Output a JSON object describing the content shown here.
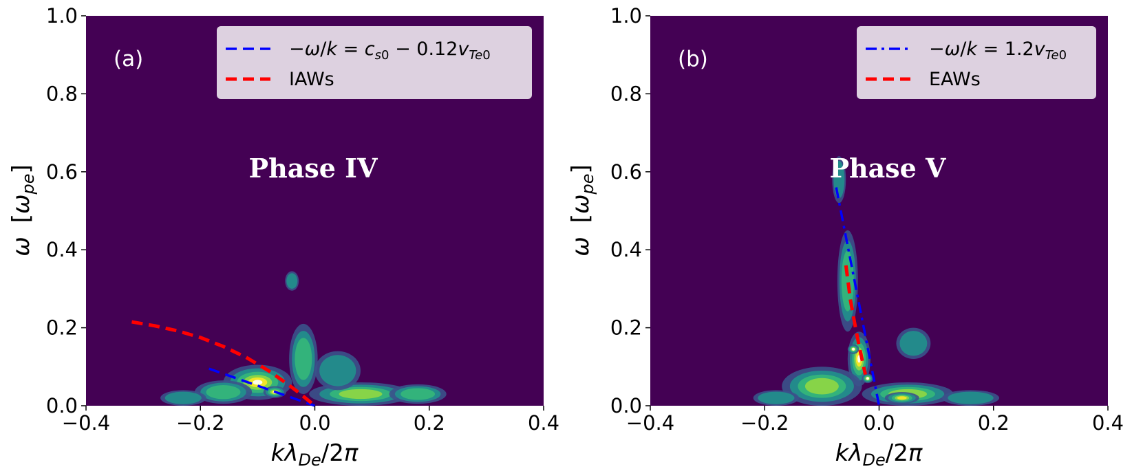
{
  "chart_data": [
    {
      "type": "contour",
      "panel": "(a)",
      "annotation": "Phase IV",
      "xlabel": "kλDe/2π",
      "ylabel": "ω   [ωpe]",
      "xlim": [
        -0.4,
        0.4
      ],
      "ylim": [
        0.0,
        1.0
      ],
      "xticks": [
        "−0.4",
        "−0.2",
        "0.0",
        "0.2",
        "0.4"
      ],
      "yticks": [
        "0.0",
        "0.2",
        "0.4",
        "0.6",
        "0.8",
        "1.0"
      ],
      "background_color": "#440154",
      "colormap": "viridis",
      "legend": {
        "location": "top-right",
        "entries": [
          {
            "label": "−ω/k = cs0 − 0.12vTe0",
            "color": "#0000ff",
            "style": "dashed"
          },
          {
            "label": "IAWs",
            "color": "#ff0000",
            "style": "dashed"
          }
        ]
      },
      "series": [
        {
          "name": "−ω/k = cs0 − 0.12vTe0",
          "color": "#0000ff",
          "style": "dashed",
          "x": [
            -0.185,
            0.0
          ],
          "y": [
            0.095,
            0.0
          ]
        },
        {
          "name": "IAWs",
          "color": "#ff0000",
          "style": "dashed",
          "x": [
            -0.32,
            -0.28,
            -0.24,
            -0.2,
            -0.16,
            -0.12,
            -0.08,
            -0.05,
            -0.03,
            0.0
          ],
          "y": [
            0.215,
            0.205,
            0.192,
            0.175,
            0.152,
            0.124,
            0.089,
            0.058,
            0.036,
            0.0
          ]
        }
      ],
      "intensity_blobs": [
        {
          "x": -0.1,
          "y": 0.06,
          "sx": 0.06,
          "sy": 0.045,
          "a": 0.85
        },
        {
          "x": -0.07,
          "y": 0.035,
          "sx": 0.02,
          "sy": 0.015,
          "a": 1.0
        },
        {
          "x": -0.16,
          "y": 0.035,
          "sx": 0.05,
          "sy": 0.03,
          "a": 0.5
        },
        {
          "x": -0.02,
          "y": 0.12,
          "sx": 0.025,
          "sy": 0.09,
          "a": 0.45
        },
        {
          "x": -0.04,
          "y": 0.32,
          "sx": 0.012,
          "sy": 0.025,
          "a": 0.25
        },
        {
          "x": 0.08,
          "y": 0.03,
          "sx": 0.09,
          "sy": 0.03,
          "a": 0.6
        },
        {
          "x": 0.04,
          "y": 0.09,
          "sx": 0.04,
          "sy": 0.05,
          "a": 0.3
        },
        {
          "x": 0.18,
          "y": 0.03,
          "sx": 0.05,
          "sy": 0.025,
          "a": 0.35
        },
        {
          "x": -0.23,
          "y": 0.02,
          "sx": 0.04,
          "sy": 0.02,
          "a": 0.3
        }
      ]
    },
    {
      "type": "contour",
      "panel": "(b)",
      "annotation": "Phase V",
      "xlabel": "kλDe/2π",
      "ylabel": "ω   [ωpe]",
      "xlim": [
        -0.4,
        0.4
      ],
      "ylim": [
        0.0,
        1.0
      ],
      "xticks": [
        "−0.4",
        "−0.2",
        "0.0",
        "0.2",
        "0.4"
      ],
      "yticks": [
        "0.0",
        "0.2",
        "0.4",
        "0.6",
        "0.8",
        "1.0"
      ],
      "background_color": "#440154",
      "colormap": "viridis",
      "legend": {
        "location": "top-right",
        "entries": [
          {
            "label": "−ω/k = 1.2vTe0",
            "color": "#0000ff",
            "style": "dashdot"
          },
          {
            "label": "EAWs",
            "color": "#ff0000",
            "style": "dashed"
          }
        ]
      },
      "series": [
        {
          "name": "−ω/k = 1.2vTe0",
          "color": "#0000ff",
          "style": "dashdot",
          "x": [
            -0.075,
            0.0
          ],
          "y": [
            0.56,
            0.0
          ]
        },
        {
          "name": "EAWs",
          "color": "#ff0000",
          "style": "dashed",
          "x": [
            -0.058,
            -0.05,
            -0.04,
            -0.03,
            -0.024
          ],
          "y": [
            0.36,
            0.27,
            0.19,
            0.12,
            0.08
          ]
        }
      ],
      "intensity_blobs": [
        {
          "x": -0.035,
          "y": 0.12,
          "sx": 0.02,
          "sy": 0.07,
          "a": 0.95
        },
        {
          "x": -0.02,
          "y": 0.07,
          "sx": 0.01,
          "sy": 0.012,
          "a": 1.0
        },
        {
          "x": -0.045,
          "y": 0.145,
          "sx": 0.01,
          "sy": 0.012,
          "a": 1.0
        },
        {
          "x": -0.055,
          "y": 0.32,
          "sx": 0.018,
          "sy": 0.13,
          "a": 0.5
        },
        {
          "x": -0.07,
          "y": 0.58,
          "sx": 0.012,
          "sy": 0.06,
          "a": 0.3
        },
        {
          "x": -0.1,
          "y": 0.05,
          "sx": 0.07,
          "sy": 0.05,
          "a": 0.55
        },
        {
          "x": 0.05,
          "y": 0.03,
          "sx": 0.08,
          "sy": 0.03,
          "a": 0.6
        },
        {
          "x": 0.04,
          "y": 0.02,
          "sx": 0.03,
          "sy": 0.015,
          "a": 0.7
        },
        {
          "x": 0.16,
          "y": 0.02,
          "sx": 0.05,
          "sy": 0.02,
          "a": 0.3
        },
        {
          "x": -0.18,
          "y": 0.02,
          "sx": 0.04,
          "sy": 0.02,
          "a": 0.3
        },
        {
          "x": 0.06,
          "y": 0.16,
          "sx": 0.03,
          "sy": 0.04,
          "a": 0.25
        }
      ]
    }
  ]
}
